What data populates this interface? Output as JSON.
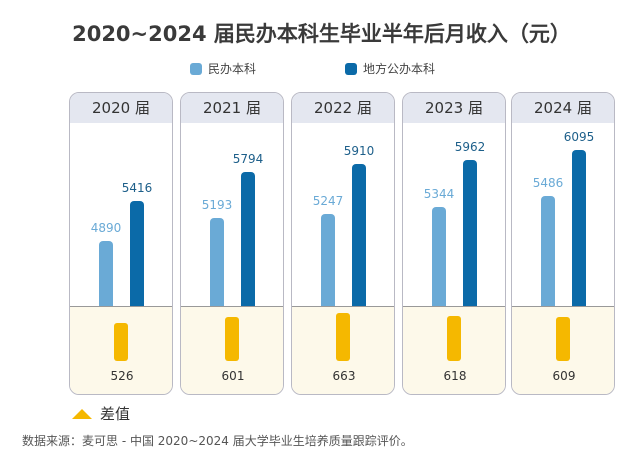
{
  "chart_data": {
    "type": "bar",
    "title": "2020~2024 届民办本科生毕业半年后月收入（元）",
    "categories": [
      "2020 届",
      "2021 届",
      "2022 届",
      "2023 届",
      "2024 届"
    ],
    "series": [
      {
        "name": "民办本科",
        "values": [
          4890,
          5193,
          5247,
          5344,
          5486
        ],
        "color": "#6aaad6"
      },
      {
        "name": "地方公办本科",
        "values": [
          5416,
          5794,
          5910,
          5962,
          6095
        ],
        "color": "#0b6aa8"
      },
      {
        "name": "差值",
        "values": [
          526,
          601,
          663,
          618,
          609
        ],
        "color": "#f5b800"
      }
    ]
  },
  "footer": "数据来源：麦可思 - 中国 2020~2024 届大学毕业生培养质量跟踪评价。"
}
